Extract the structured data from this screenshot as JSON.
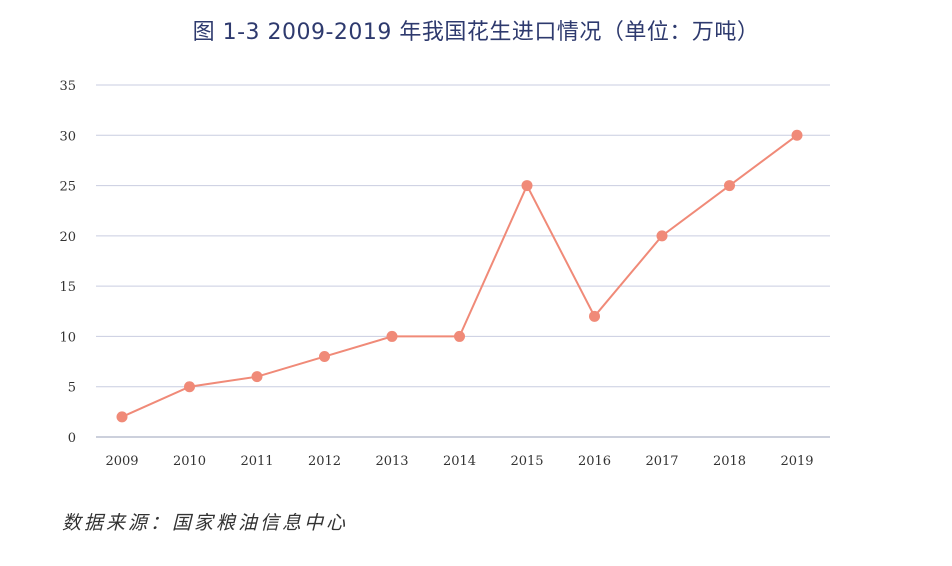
{
  "title": "图 1-3   2009-2019 年我国花生进口情况（单位：万吨）",
  "source": "数据来源：国家粮油信息中心",
  "colors": {
    "line": "#f08a78",
    "grid": "#c9cde0",
    "title": "#2e3a6e"
  },
  "chart_data": {
    "type": "line",
    "title": "图 1-3   2009-2019 年我国花生进口情况（单位：万吨）",
    "xlabel": "",
    "ylabel": "",
    "categories": [
      "2009",
      "2010",
      "2011",
      "2012",
      "2013",
      "2014",
      "2015",
      "2016",
      "2017",
      "2018",
      "2019"
    ],
    "values": [
      2,
      5,
      6,
      8,
      10,
      10,
      25,
      12,
      20,
      25,
      30
    ],
    "ylim": [
      0,
      35
    ],
    "yticks": [
      "0",
      "5",
      "10",
      "15",
      "20",
      "25",
      "30",
      "35"
    ],
    "grid": true
  }
}
